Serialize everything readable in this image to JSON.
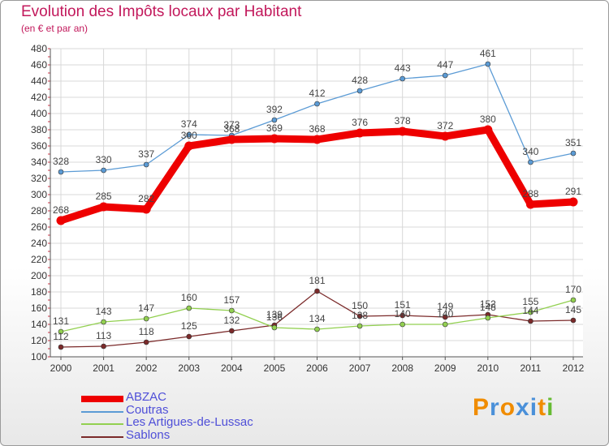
{
  "title": "Evolution des Impôts locaux par Habitant",
  "subtitle": "(en € et par an)",
  "logo": {
    "text": "Proxiti",
    "colors": [
      "#f08c00",
      "#4a90d9",
      "#f08c00",
      "#4a90d9",
      "#4a90d9",
      "#f08c00",
      "#66bb33"
    ]
  },
  "chart_data": {
    "type": "line",
    "x": [
      2000,
      2001,
      2002,
      2003,
      2004,
      2005,
      2006,
      2007,
      2008,
      2009,
      2010,
      2011,
      2012
    ],
    "ylim": [
      100,
      480
    ],
    "yticks": [
      100,
      120,
      140,
      160,
      180,
      200,
      220,
      240,
      260,
      280,
      300,
      320,
      340,
      360,
      380,
      400,
      420,
      440,
      460,
      480
    ],
    "grid": true,
    "legend_position": "bottom-left",
    "series": [
      {
        "name": "ABZAC",
        "color": "#ee0000",
        "values": [
          268,
          285,
          282,
          360,
          368,
          369,
          368,
          376,
          378,
          372,
          380,
          288,
          291
        ]
      },
      {
        "name": "Coutras",
        "color": "#5b9bd5",
        "values": [
          328,
          330,
          337,
          374,
          373,
          392,
          412,
          428,
          443,
          447,
          461,
          340,
          351
        ]
      },
      {
        "name": "Les Artigues-de-Lussac",
        "color": "#92d050",
        "values": [
          131,
          143,
          147,
          160,
          157,
          136,
          134,
          138,
          140,
          140,
          148,
          155,
          170
        ]
      },
      {
        "name": "Sablons",
        "color": "#7b2a2a",
        "values": [
          112,
          113,
          118,
          125,
          132,
          139,
          181,
          150,
          151,
          149,
          152,
          144,
          145
        ]
      }
    ]
  }
}
